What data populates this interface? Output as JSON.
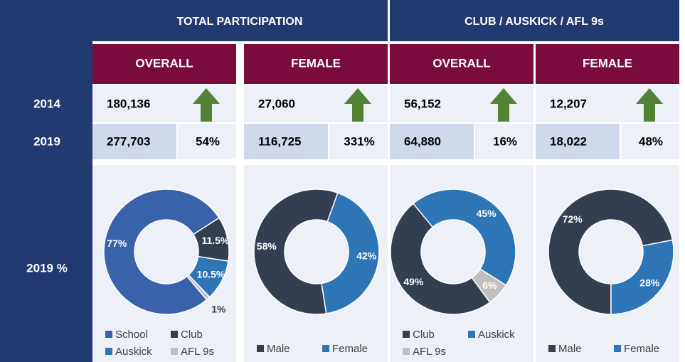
{
  "table": {
    "groups": [
      "TOTAL PARTICIPATION",
      "CLUB / AUSKICK / AFL 9s"
    ],
    "subheads": [
      "OVERALL",
      "FEMALE",
      "OVERALL",
      "FEMALE"
    ],
    "row_labels": [
      "2014",
      "2019",
      "2019 %"
    ],
    "values_2014": [
      "180,136",
      "27,060",
      "56,152",
      "12,207"
    ],
    "values_2019": [
      "277,703",
      "116,725",
      "64,880",
      "18,022"
    ],
    "growth": [
      "54%",
      "331%",
      "16%",
      "48%"
    ]
  },
  "chart_data": [
    {
      "type": "pie",
      "categories": [
        "School",
        "Club",
        "Auskick",
        "AFL 9s"
      ],
      "values": [
        77,
        11.5,
        10.5,
        1
      ],
      "value_labels": [
        "77%",
        "11.5%",
        "10.5%",
        "1%"
      ],
      "colors": [
        "#3a62aa",
        "#333f50",
        "#2e75b6",
        "#bfbfbf"
      ]
    },
    {
      "type": "pie",
      "categories": [
        "Male",
        "Female"
      ],
      "values": [
        58,
        42
      ],
      "value_labels": [
        "58%",
        "42%"
      ],
      "colors": [
        "#333f50",
        "#2e75b6"
      ]
    },
    {
      "type": "pie",
      "categories": [
        "Club",
        "Auskick",
        "AFL 9s"
      ],
      "values": [
        49,
        45,
        6
      ],
      "value_labels": [
        "49%",
        "45%",
        "6%"
      ],
      "colors": [
        "#333f50",
        "#2e75b6",
        "#bfbfbf"
      ]
    },
    {
      "type": "pie",
      "categories": [
        "Male",
        "Female"
      ],
      "values": [
        72,
        28
      ],
      "value_labels": [
        "72%",
        "28%"
      ],
      "colors": [
        "#333f50",
        "#2e75b6"
      ]
    }
  ]
}
